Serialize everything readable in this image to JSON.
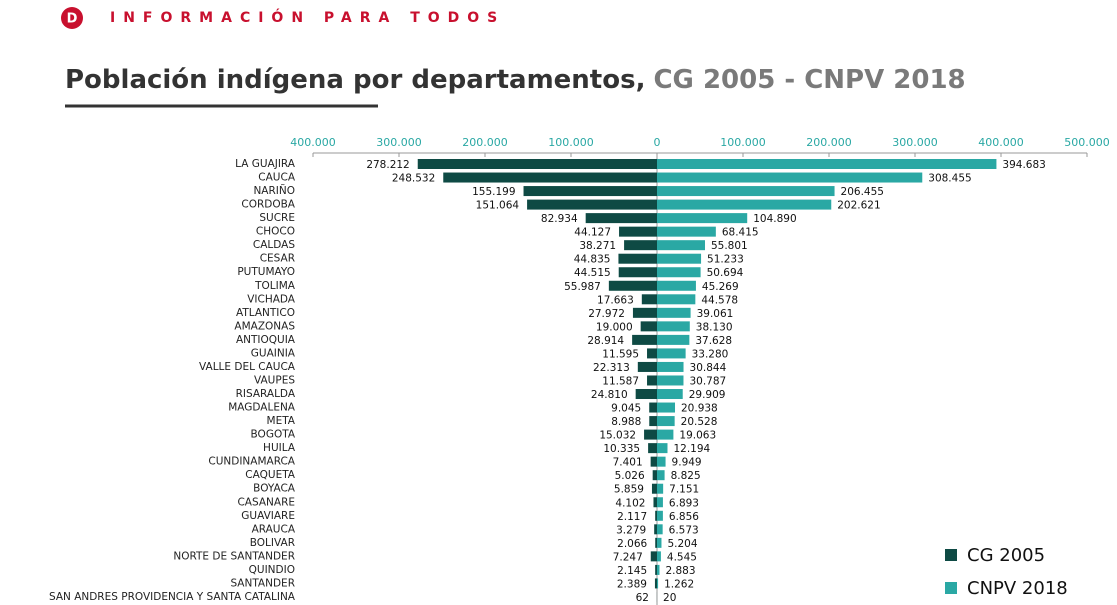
{
  "brand": {
    "logo": "D",
    "text": "INFORMACIÓN PARA TODOS"
  },
  "chart_data": {
    "type": "butterfly",
    "title": "Población indígena por departamentos,",
    "title_highlight": "CG 2005 - CNPV 2018",
    "categories": [
      "LA GUAJIRA",
      "CAUCA",
      "NARIÑO",
      "CORDOBA",
      "SUCRE",
      "CHOCO",
      "CALDAS",
      "CESAR",
      "PUTUMAYO",
      "TOLIMA",
      "VICHADA",
      "ATLANTICO",
      "AMAZONAS",
      "ANTIOQUIA",
      "GUAINIA",
      "VALLE DEL CAUCA",
      "VAUPES",
      "RISARALDA",
      "MAGDALENA",
      "META",
      "BOGOTA",
      "HUILA",
      "CUNDINAMARCA",
      "CAQUETA",
      "BOYACA",
      "CASANARE",
      "GUAVIARE",
      "ARAUCA",
      "BOLIVAR",
      "NORTE DE SANTANDER",
      "QUINDIO",
      "SANTANDER",
      "SAN ANDRES PROVIDENCIA Y SANTA CATALINA"
    ],
    "series": [
      {
        "name": "CG 2005",
        "color": "#0e4a44",
        "direction": "left",
        "values": [
          278212,
          248532,
          155199,
          151064,
          82934,
          44127,
          38271,
          44835,
          44515,
          55987,
          17663,
          27972,
          19000,
          28914,
          11595,
          22313,
          11587,
          24810,
          9045,
          8988,
          15032,
          10335,
          7401,
          5026,
          5859,
          4102,
          2117,
          3279,
          2066,
          7247,
          2145,
          2389,
          62
        ],
        "value_labels": [
          "278.212",
          "248.532",
          "155.199",
          "151.064",
          "82.934",
          "44.127",
          "38.271",
          "44.835",
          "44.515",
          "55.987",
          "17.663",
          "27.972",
          "19.000",
          "28.914",
          "11.595",
          "22.313",
          "11.587",
          "24.810",
          "9.045",
          "8.988",
          "15.032",
          "10.335",
          "7.401",
          "5.026",
          "5.859",
          "4.102",
          "2.117",
          "3.279",
          "2.066",
          "7.247",
          "2.145",
          "2.389",
          "62"
        ]
      },
      {
        "name": "CNPV 2018",
        "color": "#2aa8a4",
        "direction": "right",
        "values": [
          394683,
          308455,
          206455,
          202621,
          104890,
          68415,
          55801,
          51233,
          50694,
          45269,
          44578,
          39061,
          38130,
          37628,
          33280,
          30844,
          30787,
          29909,
          20938,
          20528,
          19063,
          12194,
          9949,
          8825,
          7151,
          6893,
          6856,
          6573,
          5204,
          4545,
          2883,
          1262,
          20
        ],
        "value_labels": [
          "394.683",
          "308.455",
          "206.455",
          "202.621",
          "104.890",
          "68.415",
          "55.801",
          "51.233",
          "50.694",
          "45.269",
          "44.578",
          "39.061",
          "38.130",
          "37.628",
          "33.280",
          "30.844",
          "30.787",
          "29.909",
          "20.938",
          "20.528",
          "19.063",
          "12.194",
          "9.949",
          "8.825",
          "7.151",
          "6.893",
          "6.856",
          "6.573",
          "5.204",
          "4.545",
          "2.883",
          "1.262",
          "20"
        ]
      }
    ],
    "xlim": [
      -400000,
      500000
    ],
    "xticks": [
      {
        "value": -400000,
        "label": "400.000"
      },
      {
        "value": -300000,
        "label": "300.000"
      },
      {
        "value": -200000,
        "label": "200.000"
      },
      {
        "value": -100000,
        "label": "100.000"
      },
      0,
      {
        "value": 100000,
        "label": "100.000"
      },
      {
        "value": 200000,
        "label": "200.000"
      },
      {
        "value": 300000,
        "label": "300.000"
      },
      {
        "value": 400000,
        "label": "400.000"
      },
      {
        "value": 500000,
        "label": "500.000"
      }
    ],
    "legend": "lower right"
  }
}
